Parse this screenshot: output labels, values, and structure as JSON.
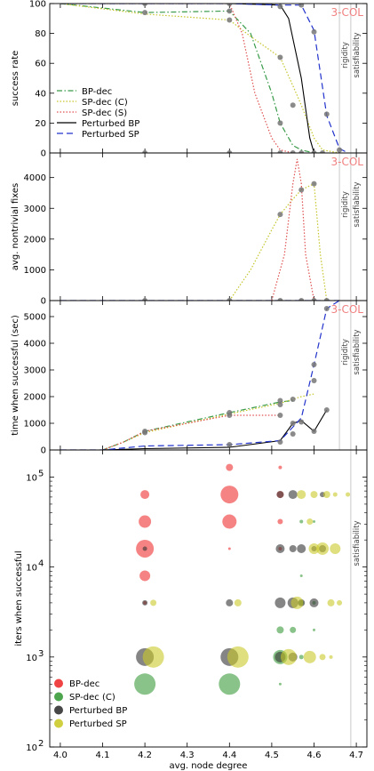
{
  "chart_data": [
    {
      "type": "line",
      "ylabel": "success rate",
      "ylim": [
        0,
        100
      ],
      "yticks": [
        0,
        20,
        40,
        60,
        80,
        100
      ],
      "xlim": [
        3.975,
        4.725
      ],
      "tag": "3-COL",
      "vlines": [
        {
          "x": 4.66,
          "label": "rigidity"
        },
        {
          "x": 4.687,
          "label": "satisfiability"
        }
      ],
      "legend": {
        "placement": "center-left"
      },
      "series": [
        {
          "name": "BP-dec",
          "style": "dashdot",
          "color": "#3a9b4a",
          "x": [
            4.0,
            4.2,
            4.4,
            4.45,
            4.5,
            4.52,
            4.55,
            4.57,
            4.6,
            4.62
          ],
          "y": [
            100,
            94,
            95,
            80,
            40,
            20,
            5,
            2,
            0,
            0
          ]
        },
        {
          "name": "SP-dec (C)",
          "style": "dotted",
          "color": "#c5c52a",
          "x": [
            4.0,
            4.2,
            4.4,
            4.45,
            4.5,
            4.52,
            4.55,
            4.57,
            4.6,
            4.62,
            4.66
          ],
          "y": [
            100,
            93,
            89,
            78,
            68,
            64,
            45,
            32,
            10,
            2,
            0
          ]
        },
        {
          "name": "SP-dec (S)",
          "style": "dotted",
          "color": "#e05050",
          "x": [
            4.0,
            4.2,
            4.4,
            4.43,
            4.46,
            4.5,
            4.52,
            4.55
          ],
          "y": [
            100,
            100,
            100,
            80,
            40,
            10,
            2,
            0
          ]
        },
        {
          "name": "Perturbed BP",
          "style": "solid",
          "color": "#000000",
          "x": [
            4.0,
            4.2,
            4.4,
            4.52,
            4.54,
            4.57,
            4.59,
            4.6,
            4.62
          ],
          "y": [
            100,
            100,
            100,
            99,
            90,
            50,
            10,
            0,
            0
          ]
        },
        {
          "name": "Perturbed SP",
          "style": "dashed",
          "color": "#2233cc",
          "x": [
            4.0,
            4.2,
            4.4,
            4.52,
            4.57,
            4.6,
            4.63,
            4.66,
            4.68
          ],
          "y": [
            100,
            100,
            100,
            99,
            99,
            82,
            25,
            3,
            0
          ]
        }
      ],
      "markers": [
        [
          4.2,
          100
        ],
        [
          4.2,
          94
        ],
        [
          4.4,
          100
        ],
        [
          4.4,
          95
        ],
        [
          4.4,
          89
        ],
        [
          4.52,
          98
        ],
        [
          4.52,
          64
        ],
        [
          4.52,
          20
        ],
        [
          4.55,
          32
        ],
        [
          4.57,
          99
        ],
        [
          4.6,
          81
        ],
        [
          4.63,
          26
        ],
        [
          4.66,
          2
        ],
        [
          4.2,
          0
        ],
        [
          4.4,
          0
        ],
        [
          4.52,
          0
        ],
        [
          4.55,
          0
        ],
        [
          4.57,
          0
        ],
        [
          4.6,
          0
        ],
        [
          4.62,
          0
        ]
      ]
    },
    {
      "type": "line",
      "ylabel": "avg. nontrivial fixes",
      "ylim": [
        0,
        4800
      ],
      "yticks": [
        0,
        1000,
        2000,
        3000,
        4000
      ],
      "xlim": [
        3.975,
        4.725
      ],
      "tag": "3-COL",
      "vlines": [
        {
          "x": 4.66,
          "label": "rigidity"
        },
        {
          "x": 4.687,
          "label": "satisfiability"
        }
      ],
      "series": [
        {
          "name": "SP-dec (C)",
          "style": "dotted",
          "color": "#c5c52a",
          "x": [
            4.4,
            4.45,
            4.5,
            4.52,
            4.55,
            4.57,
            4.6,
            4.615,
            4.63
          ],
          "y": [
            0,
            1000,
            2300,
            2800,
            3300,
            3600,
            3800,
            1500,
            0
          ]
        },
        {
          "name": "SP-dec (S)",
          "style": "dotted",
          "color": "#e05050",
          "x": [
            4.5,
            4.53,
            4.55,
            4.56,
            4.57,
            4.58,
            4.6
          ],
          "y": [
            0,
            1500,
            3800,
            4600,
            3800,
            1500,
            0
          ]
        },
        {
          "name": "Perturbed BP",
          "style": "solid",
          "color": "#000000",
          "x": [
            4.0,
            4.66
          ],
          "y": [
            0,
            0
          ]
        },
        {
          "name": "Perturbed SP",
          "style": "dashed",
          "color": "#2233cc",
          "x": [
            4.0,
            4.66
          ],
          "y": [
            0,
            0
          ]
        }
      ],
      "markers": [
        [
          4.52,
          2800
        ],
        [
          4.57,
          3600
        ],
        [
          4.6,
          3800
        ],
        [
          4.2,
          0
        ],
        [
          4.4,
          0
        ],
        [
          4.52,
          0
        ],
        [
          4.57,
          0
        ],
        [
          4.6,
          0
        ],
        [
          4.63,
          0
        ]
      ]
    },
    {
      "type": "line",
      "ylabel": "time when successful (sec)",
      "ylim": [
        0,
        5600
      ],
      "yticks": [
        0,
        1000,
        2000,
        3000,
        4000,
        5000
      ],
      "xlim": [
        3.975,
        4.725
      ],
      "tag": "3-COL",
      "vlines": [
        {
          "x": 4.66,
          "label": "rigidity"
        },
        {
          "x": 4.687,
          "label": "satisfiability"
        }
      ],
      "series": [
        {
          "name": "BP-dec",
          "style": "dashdot",
          "color": "#3a9b4a",
          "x": [
            4.1,
            4.15,
            4.2,
            4.4,
            4.52,
            4.55
          ],
          "y": [
            0,
            300,
            700,
            1400,
            1800,
            1850
          ]
        },
        {
          "name": "SP-dec (C)",
          "style": "dotted",
          "color": "#c5c52a",
          "x": [
            4.1,
            4.15,
            4.2,
            4.4,
            4.52,
            4.55,
            4.57,
            4.6
          ],
          "y": [
            0,
            300,
            650,
            1350,
            1750,
            1900,
            2000,
            2100
          ]
        },
        {
          "name": "SP-dec (S)",
          "style": "dotted",
          "color": "#e05050",
          "x": [
            4.1,
            4.15,
            4.2,
            4.4,
            4.5,
            4.52
          ],
          "y": [
            0,
            300,
            700,
            1300,
            1300,
            1300
          ]
        },
        {
          "name": "Perturbed BP",
          "style": "solid",
          "color": "#000000",
          "x": [
            4.0,
            4.1,
            4.2,
            4.4,
            4.52,
            4.55,
            4.57,
            4.6,
            4.63
          ],
          "y": [
            0,
            0,
            50,
            100,
            350,
            1000,
            1100,
            700,
            1500
          ]
        },
        {
          "name": "Perturbed SP",
          "style": "dashed",
          "color": "#2233cc",
          "x": [
            4.0,
            4.1,
            4.2,
            4.4,
            4.52,
            4.57,
            4.6,
            4.63,
            4.66
          ],
          "y": [
            0,
            0,
            150,
            200,
            350,
            1200,
            3200,
            5300,
            5600
          ]
        }
      ],
      "markers": [
        [
          4.2,
          700
        ],
        [
          4.2,
          650
        ],
        [
          4.4,
          1300
        ],
        [
          4.4,
          1400
        ],
        [
          4.4,
          200
        ],
        [
          4.52,
          1850
        ],
        [
          4.52,
          1700
        ],
        [
          4.52,
          1300
        ],
        [
          4.52,
          300
        ],
        [
          4.55,
          1900
        ],
        [
          4.55,
          600
        ],
        [
          4.55,
          1000
        ],
        [
          4.57,
          1050
        ],
        [
          4.6,
          2600
        ],
        [
          4.6,
          3200
        ],
        [
          4.6,
          700
        ],
        [
          4.63,
          1500
        ],
        [
          4.63,
          5300
        ]
      ]
    },
    {
      "type": "scatter",
      "ylabel": "iters when successful",
      "xlabel": "avg. node degree",
      "yscale": "log",
      "ylim": [
        100,
        200000
      ],
      "yticks": [
        {
          "v": 100,
          "base": "10",
          "exp": "2"
        },
        {
          "v": 1000,
          "base": "10",
          "exp": "3"
        },
        {
          "v": 10000,
          "base": "10",
          "exp": "4"
        },
        {
          "v": 100000,
          "base": "10",
          "exp": "5"
        }
      ],
      "xlim": [
        3.975,
        4.725
      ],
      "xticks": [
        "4.0",
        "4.1",
        "4.2",
        "4.3",
        "4.4",
        "4.5",
        "4.6",
        "4.7"
      ],
      "vlines": [
        {
          "x": 4.687,
          "label": "satisfiability"
        }
      ],
      "legend": {
        "placement": "lower-left"
      },
      "series": [
        {
          "name": "BP-dec",
          "color": "#ee3030",
          "points": [
            [
              4.2,
              64000,
              5
            ],
            [
              4.2,
              32000,
              7
            ],
            [
              4.2,
              16000,
              10
            ],
            [
              4.2,
              8000,
              6
            ],
            [
              4.2,
              4000,
              2
            ],
            [
              4.4,
              128000,
              4
            ],
            [
              4.4,
              64000,
              10
            ],
            [
              4.4,
              32000,
              8
            ],
            [
              4.4,
              16000,
              1.5
            ],
            [
              4.52,
              128000,
              2
            ],
            [
              4.52,
              64000,
              4
            ],
            [
              4.52,
              32000,
              3
            ],
            [
              4.52,
              16000,
              2
            ]
          ]
        },
        {
          "name": "SP-dec (C)",
          "color": "#3a9b3a",
          "points": [
            [
              4.2,
              500,
              12
            ],
            [
              4.4,
              500,
              12
            ],
            [
              4.52,
              1000,
              8
            ],
            [
              4.52,
              2000,
              4
            ],
            [
              4.52,
              500,
              1.5
            ],
            [
              4.55,
              2000,
              3.5
            ],
            [
              4.57,
              4000,
              3
            ],
            [
              4.57,
              8000,
              1.5
            ],
            [
              4.57,
              32000,
              2
            ],
            [
              4.57,
              1000,
              2.5
            ],
            [
              4.6,
              4000,
              2
            ],
            [
              4.6,
              2000,
              1.5
            ],
            [
              4.6,
              32000,
              1.5
            ]
          ]
        },
        {
          "name": "Perturbed BP",
          "color": "#333333",
          "points": [
            [
              4.2,
              1000,
              10
            ],
            [
              4.2,
              4000,
              3
            ],
            [
              4.2,
              16000,
              2.5
            ],
            [
              4.4,
              1000,
              10
            ],
            [
              4.4,
              4000,
              4
            ],
            [
              4.52,
              1000,
              6
            ],
            [
              4.52,
              4000,
              6
            ],
            [
              4.52,
              16000,
              5
            ],
            [
              4.52,
              64000,
              4
            ],
            [
              4.55,
              1000,
              5
            ],
            [
              4.55,
              4000,
              6
            ],
            [
              4.55,
              16000,
              4
            ],
            [
              4.55,
              64000,
              5
            ],
            [
              4.57,
              16000,
              5
            ],
            [
              4.57,
              4000,
              4
            ],
            [
              4.6,
              16000,
              3
            ],
            [
              4.6,
              4000,
              5
            ],
            [
              4.62,
              64000,
              3
            ],
            [
              4.62,
              16000,
              4
            ]
          ]
        },
        {
          "name": "Perturbed SP",
          "color": "#caca2a",
          "points": [
            [
              4.22,
              1000,
              12
            ],
            [
              4.22,
              4000,
              3.5
            ],
            [
              4.42,
              1000,
              12
            ],
            [
              4.42,
              4000,
              4
            ],
            [
              4.54,
              1000,
              9
            ],
            [
              4.56,
              4000,
              7
            ],
            [
              4.59,
              1000,
              7
            ],
            [
              4.62,
              1000,
              3.5
            ],
            [
              4.64,
              1000,
              2
            ],
            [
              4.6,
              16000,
              6
            ],
            [
              4.62,
              16000,
              7
            ],
            [
              4.65,
              16000,
              6
            ],
            [
              4.57,
              64000,
              5
            ],
            [
              4.6,
              64000,
              4
            ],
            [
              4.63,
              64000,
              4
            ],
            [
              4.65,
              64000,
              2.5
            ],
            [
              4.59,
              32000,
              3.5
            ],
            [
              4.64,
              4000,
              4
            ],
            [
              4.66,
              4000,
              3
            ],
            [
              4.68,
              64000,
              2.5
            ]
          ]
        }
      ]
    }
  ]
}
